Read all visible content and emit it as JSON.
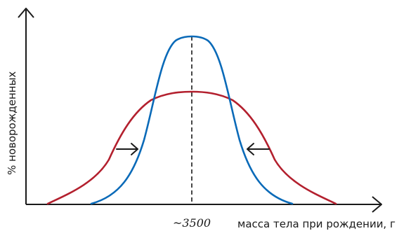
{
  "chart_data": {
    "type": "line",
    "xlabel": "масса тела при рождении, г",
    "ylabel": "% новорожденных",
    "center_label": "~3500",
    "center_x": 3500,
    "series": [
      {
        "color": "#0a6ab8"
      },
      {
        "color": "#b3202e"
      }
    ],
    "arrows": [
      "inward-left",
      "inward-right"
    ],
    "grid": false,
    "legend": "none"
  }
}
